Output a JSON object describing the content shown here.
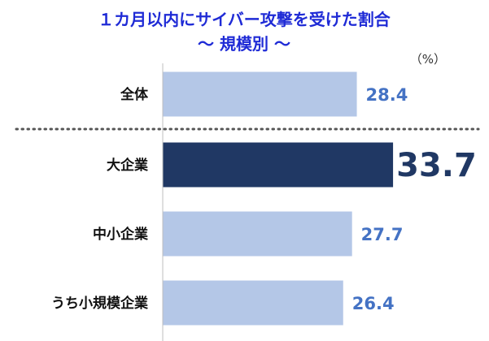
{
  "chart_data": {
    "type": "bar",
    "orientation": "horizontal",
    "title": "１カ月以内にサイバー攻撃を受けた割合",
    "subtitle": "～ 規模別 ～",
    "unit_label": "（%）",
    "categories": [
      "全体",
      "大企業",
      "中小企業",
      "うち小規模企業"
    ],
    "values": [
      28.4,
      33.7,
      27.7,
      26.4
    ],
    "highlight_index": 1,
    "xlim": [
      0,
      37
    ],
    "grid": false,
    "legend": "none",
    "colors": {
      "bar": "#b4c7e7",
      "highlight_bar": "#203864",
      "value_label": "#4472c4",
      "highlight_value_label": "#203864",
      "title": "#1f2bd6"
    }
  }
}
